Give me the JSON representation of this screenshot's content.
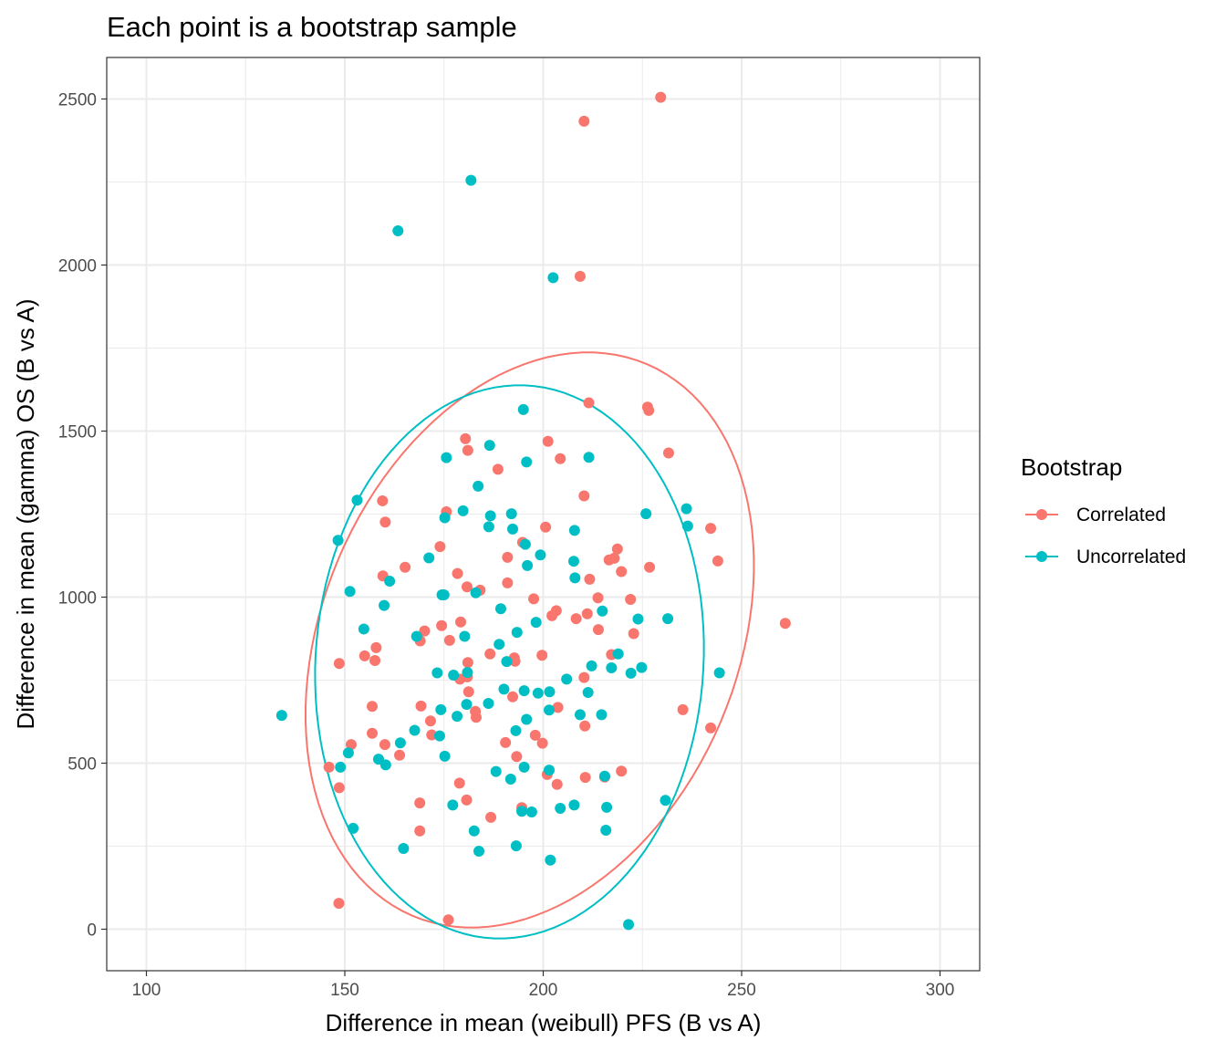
{
  "chart_data": {
    "type": "scatter",
    "title": "Each point is a bootstrap sample",
    "xlabel": "Difference in mean (weibull) PFS (B vs A)",
    "ylabel": "Difference in mean (gamma) OS (B vs A)",
    "xlim": [
      90,
      310
    ],
    "ylim": [
      -125,
      2625
    ],
    "x_ticks": [
      100,
      150,
      200,
      250,
      300
    ],
    "y_ticks": [
      0,
      500,
      1000,
      1500,
      2000,
      2500
    ],
    "grid": true,
    "legend": {
      "title": "Bootstrap",
      "position": "right"
    },
    "series": [
      {
        "name": "Correlated",
        "color": "#F8766D",
        "points": [
          [
            229.6,
            2505
          ],
          [
            210.3,
            2433
          ],
          [
            209.3,
            1966
          ],
          [
            211.5,
            1585
          ],
          [
            226.3,
            1572
          ],
          [
            226.6,
            1562
          ],
          [
            180.4,
            1477
          ],
          [
            201.2,
            1469
          ],
          [
            181.0,
            1442
          ],
          [
            231.6,
            1434
          ],
          [
            204.3,
            1417
          ],
          [
            188.6,
            1385
          ],
          [
            210.3,
            1305
          ],
          [
            159.5,
            1290
          ],
          [
            175.6,
            1257
          ],
          [
            160.2,
            1226
          ],
          [
            200.6,
            1211
          ],
          [
            242.2,
            1207
          ],
          [
            194.8,
            1165
          ],
          [
            174.0,
            1152
          ],
          [
            218.7,
            1145
          ],
          [
            191.0,
            1120
          ],
          [
            216.6,
            1112
          ],
          [
            217.9,
            1117
          ],
          [
            244.0,
            1109
          ],
          [
            165.2,
            1090
          ],
          [
            226.8,
            1090
          ],
          [
            219.7,
            1077
          ],
          [
            178.4,
            1071
          ],
          [
            159.6,
            1064
          ],
          [
            211.7,
            1054
          ],
          [
            191.0,
            1043
          ],
          [
            180.8,
            1031
          ],
          [
            184.1,
            1021
          ],
          [
            213.8,
            998
          ],
          [
            197.6,
            995
          ],
          [
            222.0,
            993
          ],
          [
            203.3,
            959
          ],
          [
            211.1,
            950
          ],
          [
            202.2,
            944
          ],
          [
            208.3,
            935
          ],
          [
            179.2,
            925
          ],
          [
            261.0,
            921
          ],
          [
            174.4,
            914
          ],
          [
            170.1,
            898
          ],
          [
            213.9,
            902
          ],
          [
            222.8,
            890
          ],
          [
            176.4,
            870
          ],
          [
            169.0,
            868
          ],
          [
            157.9,
            848
          ],
          [
            217.2,
            827
          ],
          [
            186.6,
            829
          ],
          [
            155.0,
            823
          ],
          [
            199.7,
            825
          ],
          [
            192.7,
            817
          ],
          [
            157.6,
            809
          ],
          [
            192.9,
            807
          ],
          [
            181.0,
            803
          ],
          [
            148.6,
            800
          ],
          [
            210.3,
            758
          ],
          [
            180.9,
            760
          ],
          [
            179.0,
            753
          ],
          [
            181.2,
            715
          ],
          [
            192.3,
            700
          ],
          [
            169.2,
            672
          ],
          [
            156.9,
            671
          ],
          [
            203.7,
            668
          ],
          [
            235.2,
            661
          ],
          [
            182.9,
            656
          ],
          [
            183.1,
            638
          ],
          [
            171.6,
            627
          ],
          [
            242.2,
            606
          ],
          [
            210.5,
            612
          ],
          [
            156.9,
            590
          ],
          [
            198.0,
            584
          ],
          [
            171.9,
            585
          ],
          [
            160.1,
            556
          ],
          [
            151.6,
            556
          ],
          [
            190.5,
            562
          ],
          [
            199.8,
            560
          ],
          [
            193.3,
            520
          ],
          [
            163.8,
            524
          ],
          [
            146.0,
            488
          ],
          [
            201.0,
            466
          ],
          [
            219.7,
            476
          ],
          [
            210.6,
            457
          ],
          [
            215.5,
            458
          ],
          [
            178.9,
            440
          ],
          [
            203.5,
            436
          ],
          [
            148.6,
            426
          ],
          [
            180.7,
            389
          ],
          [
            168.9,
            380
          ],
          [
            194.6,
            366
          ],
          [
            186.8,
            337
          ],
          [
            168.9,
            296
          ],
          [
            148.5,
            78
          ],
          [
            176.1,
            28
          ]
        ]
      },
      {
        "name": "Uncorrelated",
        "color": "#00BFC4",
        "points": [
          [
            181.8,
            2255
          ],
          [
            163.4,
            2103
          ],
          [
            202.5,
            1962
          ],
          [
            195.0,
            1565
          ],
          [
            175.6,
            1420
          ],
          [
            211.5,
            1421
          ],
          [
            186.5,
            1457
          ],
          [
            195.8,
            1407
          ],
          [
            183.6,
            1334
          ],
          [
            153.1,
            1292
          ],
          [
            179.8,
            1260
          ],
          [
            192.0,
            1251
          ],
          [
            186.7,
            1245
          ],
          [
            225.9,
            1251
          ],
          [
            236.1,
            1266
          ],
          [
            175.2,
            1239
          ],
          [
            186.3,
            1212
          ],
          [
            236.4,
            1214
          ],
          [
            192.3,
            1205
          ],
          [
            207.9,
            1201
          ],
          [
            148.3,
            1171
          ],
          [
            195.5,
            1159
          ],
          [
            199.3,
            1127
          ],
          [
            171.2,
            1118
          ],
          [
            207.7,
            1108
          ],
          [
            196.0,
            1095
          ],
          [
            161.3,
            1048
          ],
          [
            208.0,
            1058
          ],
          [
            151.3,
            1017
          ],
          [
            174.5,
            1007
          ],
          [
            175.0,
            1007
          ],
          [
            183.0,
            1013
          ],
          [
            159.9,
            975
          ],
          [
            189.3,
            965
          ],
          [
            214.9,
            958
          ],
          [
            223.9,
            934
          ],
          [
            231.4,
            935
          ],
          [
            154.8,
            904
          ],
          [
            193.4,
            894
          ],
          [
            198.2,
            924
          ],
          [
            168.1,
            882
          ],
          [
            180.2,
            882
          ],
          [
            188.9,
            858
          ],
          [
            218.9,
            829
          ],
          [
            212.2,
            793
          ],
          [
            217.2,
            787
          ],
          [
            224.8,
            788
          ],
          [
            244.4,
            772
          ],
          [
            190.8,
            806
          ],
          [
            173.3,
            772
          ],
          [
            222.1,
            771
          ],
          [
            177.4,
            765
          ],
          [
            180.9,
            773
          ],
          [
            205.9,
            753
          ],
          [
            190.1,
            723
          ],
          [
            195.2,
            718
          ],
          [
            198.7,
            711
          ],
          [
            201.6,
            715
          ],
          [
            211.3,
            713
          ],
          [
            180.7,
            677
          ],
          [
            174.2,
            661
          ],
          [
            186.2,
            680
          ],
          [
            201.5,
            660
          ],
          [
            178.3,
            641
          ],
          [
            209.3,
            646
          ],
          [
            214.7,
            646
          ],
          [
            134.1,
            644
          ],
          [
            195.8,
            632
          ],
          [
            193.1,
            598
          ],
          [
            167.6,
            599
          ],
          [
            173.9,
            582
          ],
          [
            164.0,
            561
          ],
          [
            150.9,
            531
          ],
          [
            158.5,
            512
          ],
          [
            175.2,
            521
          ],
          [
            160.3,
            495
          ],
          [
            148.9,
            488
          ],
          [
            188.1,
            475
          ],
          [
            201.5,
            479
          ],
          [
            195.2,
            488
          ],
          [
            191.8,
            452
          ],
          [
            215.5,
            461
          ],
          [
            230.8,
            388
          ],
          [
            177.2,
            374
          ],
          [
            207.8,
            374
          ],
          [
            216.0,
            367
          ],
          [
            204.3,
            364
          ],
          [
            194.6,
            355
          ],
          [
            197.1,
            353
          ],
          [
            152.1,
            304
          ],
          [
            182.6,
            296
          ],
          [
            215.8,
            298
          ],
          [
            193.2,
            251
          ],
          [
            164.8,
            243
          ],
          [
            183.8,
            235
          ],
          [
            201.8,
            208
          ],
          [
            221.5,
            14
          ]
        ]
      }
    ],
    "ellipses": [
      {
        "series": "Correlated",
        "cx": 196.6,
        "cy": 871,
        "a_x": 56.5,
        "b_y": 866,
        "r": 0.26
      },
      {
        "series": "Uncorrelated",
        "cx": 191.5,
        "cy": 805,
        "a_x": 49,
        "b_y": 833,
        "r": 0.05
      }
    ]
  }
}
